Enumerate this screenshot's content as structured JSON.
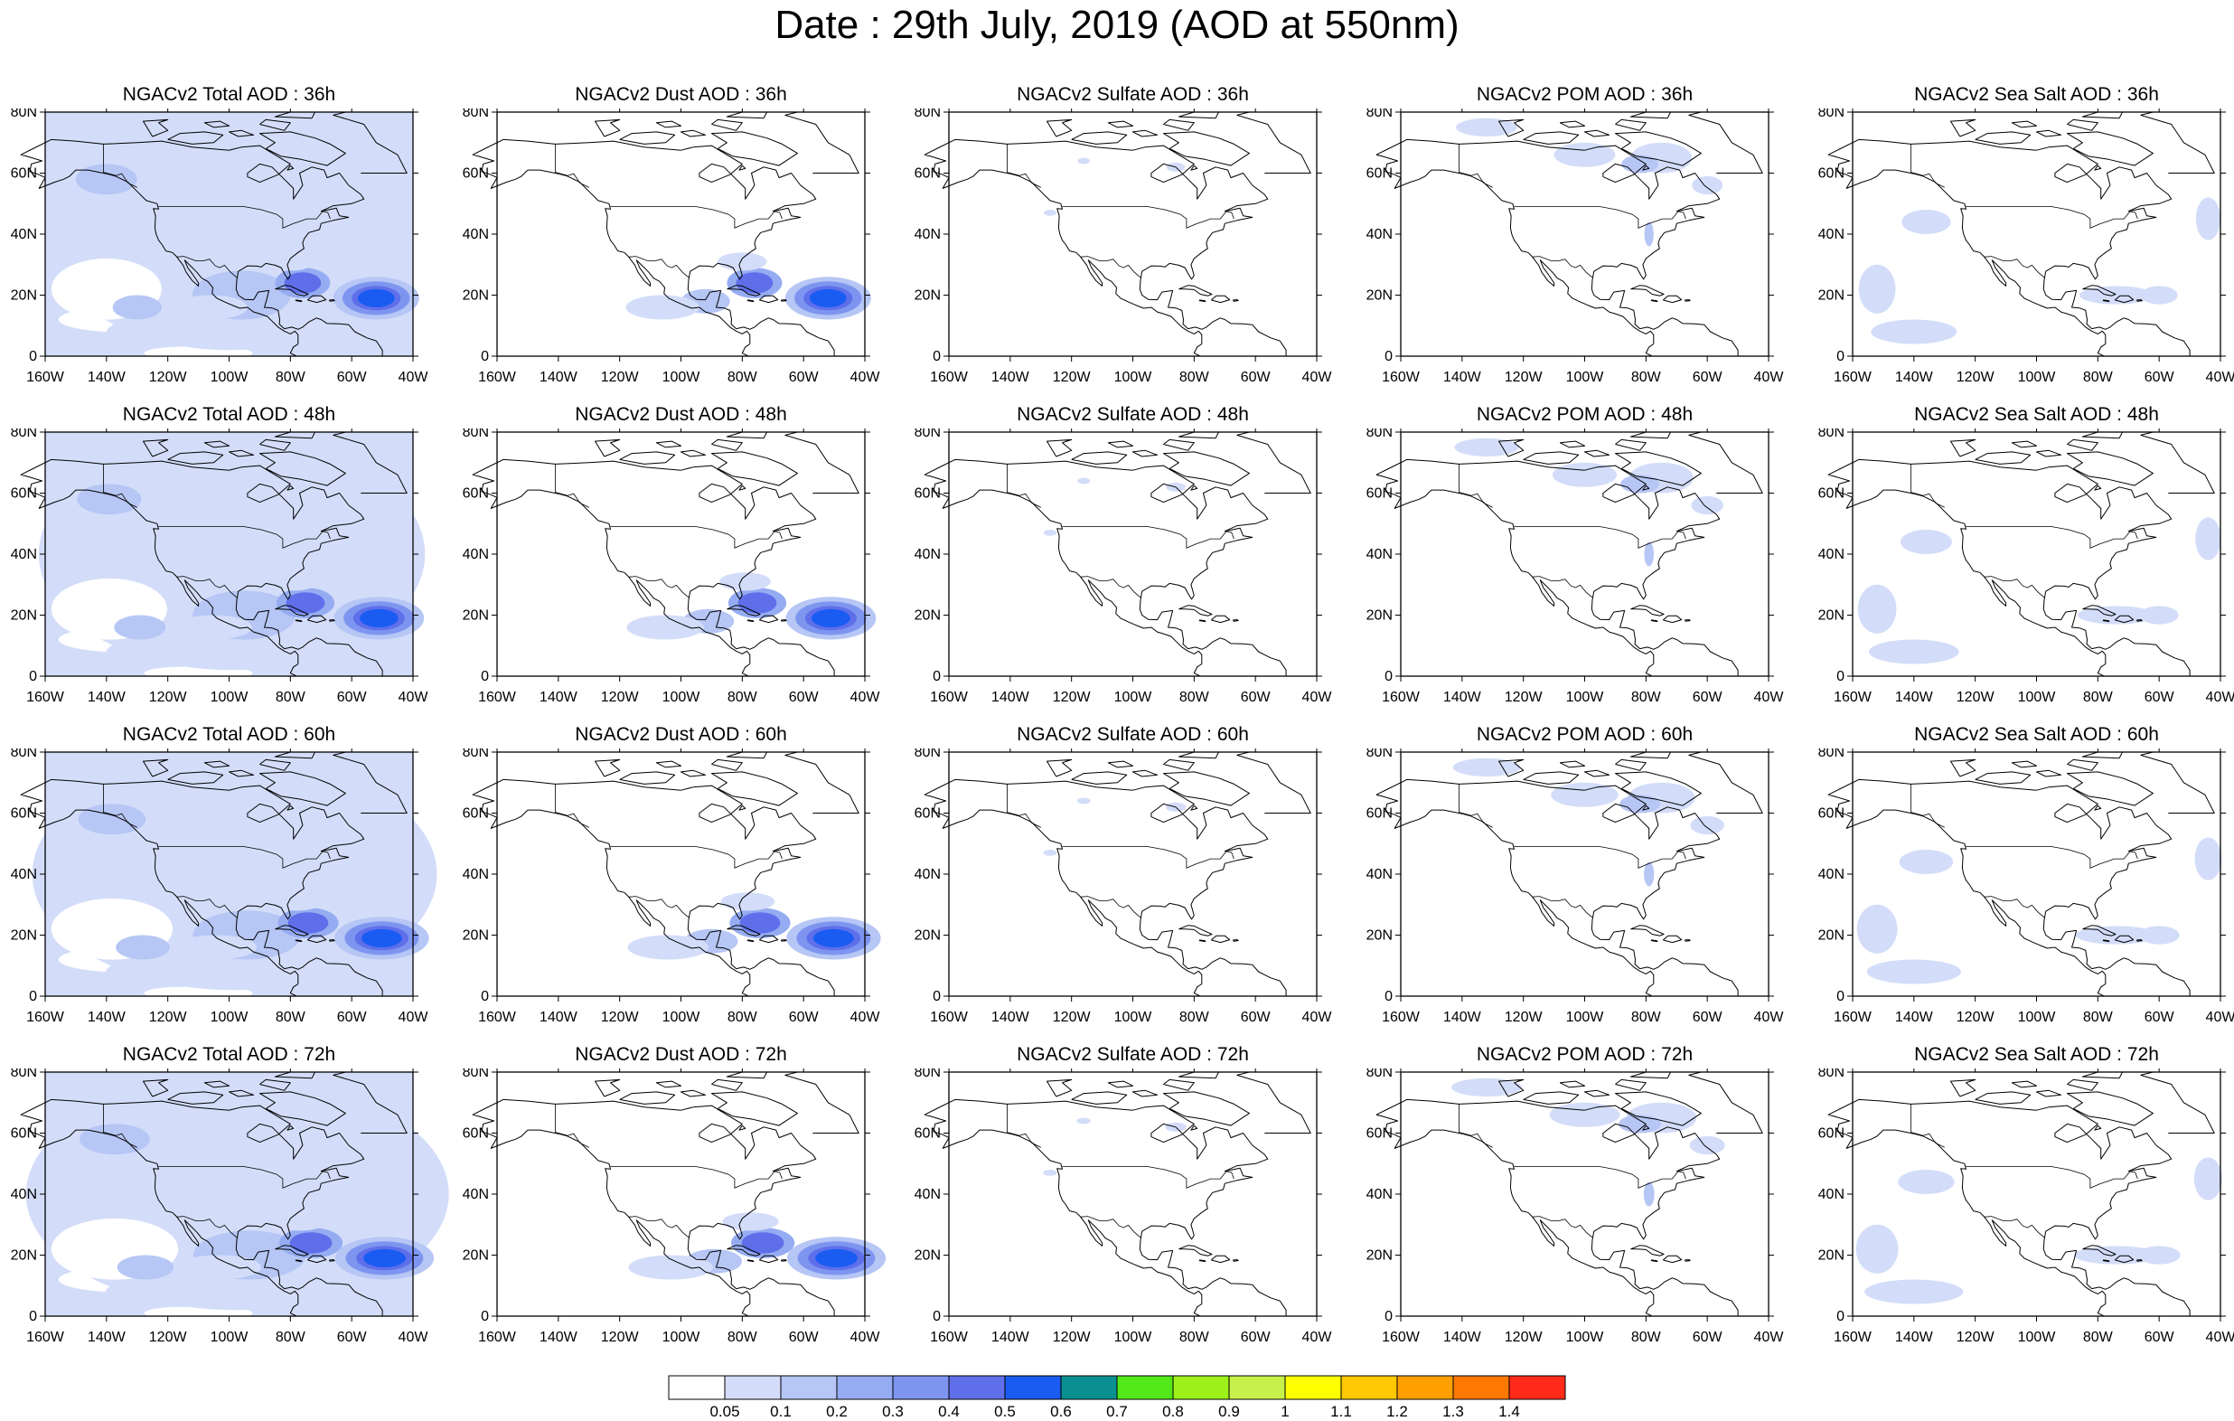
{
  "title": "Date : 29th July, 2019 (AOD at 550nm)",
  "lat_ticks": [
    "0",
    "20N",
    "40N",
    "60N",
    "80N"
  ],
  "lon_ticks": [
    "160W",
    "140W",
    "120W",
    "100W",
    "80W",
    "60W",
    "40W"
  ],
  "panels": [
    [
      "NGACv2 Total AOD : 36h",
      "NGACv2 Dust AOD : 36h",
      "NGACv2 Sulfate AOD : 36h",
      "NGACv2 POM AOD : 36h",
      "NGACv2 Sea Salt AOD : 36h"
    ],
    [
      "NGACv2 Total AOD : 48h",
      "NGACv2 Dust AOD : 48h",
      "NGACv2 Sulfate AOD : 48h",
      "NGACv2 POM AOD : 48h",
      "NGACv2 Sea Salt AOD : 48h"
    ],
    [
      "NGACv2 Total AOD : 60h",
      "NGACv2 Dust AOD : 60h",
      "NGACv2 Sulfate AOD : 60h",
      "NGACv2 POM AOD : 60h",
      "NGACv2 Sea Salt AOD : 60h"
    ],
    [
      "NGACv2 Total AOD : 72h",
      "NGACv2 Dust AOD : 72h",
      "NGACv2 Sulfate AOD : 72h",
      "NGACv2 POM AOD : 72h",
      "NGACv2 Sea Salt  AOD : 72h"
    ]
  ],
  "colorbar": {
    "labels": [
      "0.05",
      "0.1",
      "0.2",
      "0.3",
      "0.4",
      "0.5",
      "0.6",
      "0.7",
      "0.8",
      "0.9",
      "1",
      "1.1",
      "1.2",
      "1.3",
      "1.4"
    ],
    "colors": [
      "#ffffff",
      "#d3ddf9",
      "#b6c6f5",
      "#95acf2",
      "#7e95f0",
      "#5f6fea",
      "#1a5cf2",
      "#0a9090",
      "#52e81a",
      "#9ef01a",
      "#c8f04a",
      "#ffff00",
      "#ffc800",
      "#ffa000",
      "#ff7800",
      "#ff2a1a"
    ]
  }
}
